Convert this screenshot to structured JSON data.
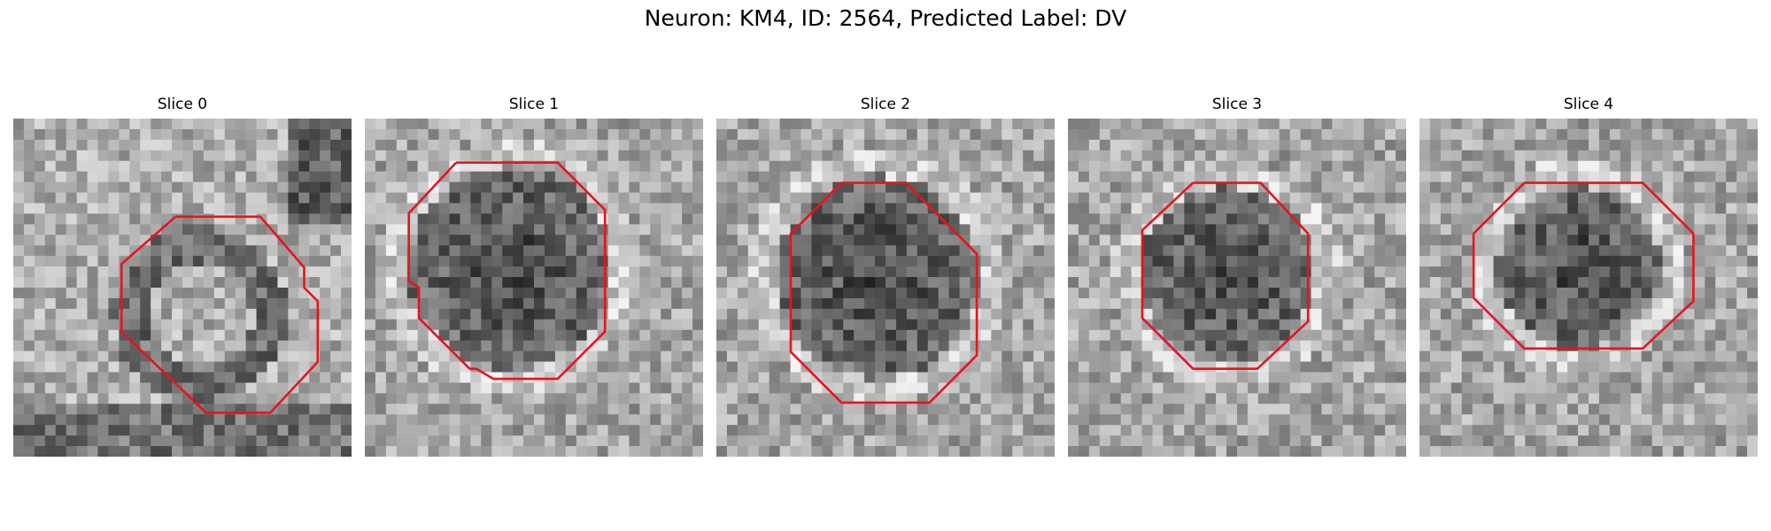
{
  "title": "Neuron: KM4, ID: 2564, Predicted Label: DV",
  "panels": [
    {
      "title": "Slice 0",
      "seed": 11,
      "contrast": "bright-ring"
    },
    {
      "title": "Slice 1",
      "seed": 23,
      "contrast": "dark-cell"
    },
    {
      "title": "Slice 2",
      "seed": 37,
      "contrast": "dark-cell"
    },
    {
      "title": "Slice 3",
      "seed": 41,
      "contrast": "dark-cell"
    },
    {
      "title": "Slice 4",
      "seed": 53,
      "contrast": "dark-cell"
    }
  ],
  "outline_color": "#e8141b",
  "image_style": "grayscale microscopy crop with red polygon ROI outline"
}
